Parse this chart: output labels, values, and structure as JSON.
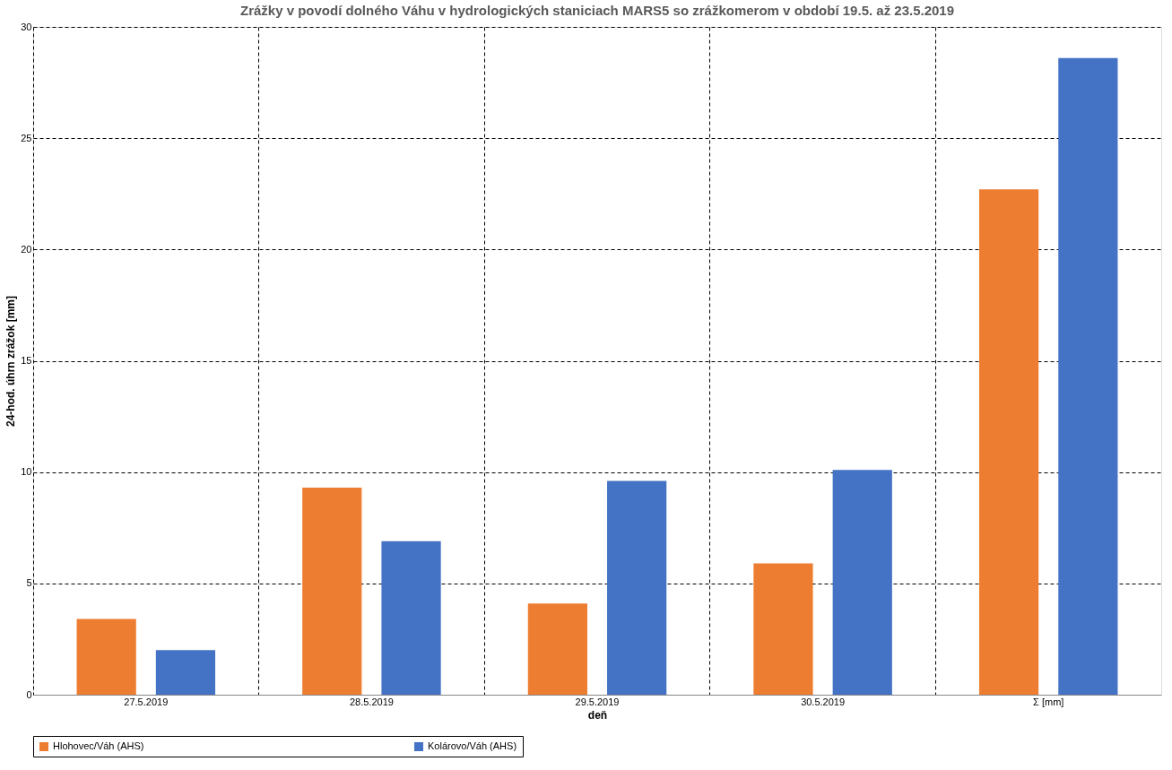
{
  "chart_data": {
    "type": "bar",
    "title": "Zrážky v povodí dolného Váhu v hydrologických staniciach MARS5 so zrážkomerom v období 19.5. až 23.5.2019",
    "xlabel": "deň",
    "ylabel": "24-hod. úhrn zrážok [mm]",
    "categories": [
      "27.5.2019",
      "28.5.2019",
      "29.5.2019",
      "30.5.2019",
      "Σ [mm]"
    ],
    "series": [
      {
        "name": "Hlohovec/Váh (AHS)",
        "color": "#ed7d31",
        "values": [
          3.4,
          9.3,
          4.1,
          5.9,
          22.7
        ]
      },
      {
        "name": "Kolárovo/Váh (AHS)",
        "color": "#4472c4",
        "values": [
          2.0,
          6.9,
          9.6,
          10.1,
          28.6
        ]
      }
    ],
    "ylim": [
      0,
      30
    ],
    "yticks": [
      0,
      5,
      10,
      15,
      20,
      25,
      30
    ],
    "grid": true,
    "legend": "bottom"
  }
}
